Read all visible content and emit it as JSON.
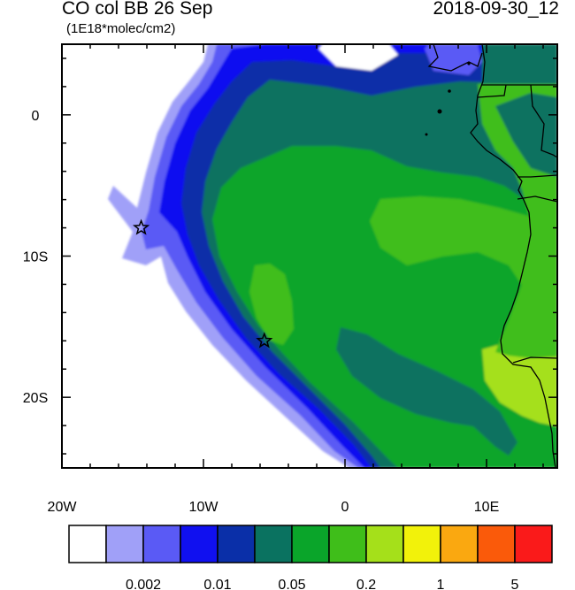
{
  "title": "CO col BB 26 Sep",
  "datetime": "2018-09-30_12",
  "units": "(1E18*molec/cm2)",
  "map": {
    "lon_range": [
      -20,
      15
    ],
    "lat_range": [
      -25,
      5
    ],
    "x_tick_labels": [
      "20W",
      "10W",
      "0",
      "10E"
    ],
    "y_tick_labels": [
      "0",
      "10S",
      "20S"
    ],
    "markers": [
      {
        "name": "star",
        "lon": -14.4,
        "lat": -8.0
      },
      {
        "name": "star",
        "lon": -5.7,
        "lat": -16.0
      }
    ]
  },
  "colorbar": {
    "colors": [
      "#ffffff",
      "#a0a0f8",
      "#5a5af5",
      "#1010f0",
      "#0a2fa8",
      "#0a7260",
      "#0aa52a",
      "#3fbe1a",
      "#a5e01a",
      "#f2f20a",
      "#faa810",
      "#fa5a0a",
      "#fa1a1a"
    ],
    "tick_labels": [
      "0.002",
      "0.01",
      "0.05",
      "0.2",
      "1",
      "5"
    ]
  }
}
